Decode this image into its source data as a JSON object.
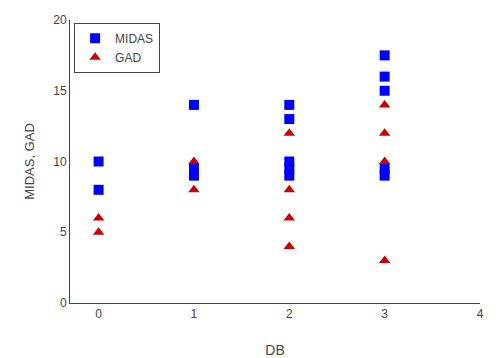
{
  "chart_data": {
    "type": "scatter",
    "xlabel": "DB",
    "ylabel": "MIDAS, GAD",
    "series": [
      {
        "name": "MIDAS",
        "color": "#0000FF",
        "marker": "square",
        "x": [
          0,
          0,
          1,
          1,
          1,
          2,
          2,
          2,
          2,
          2,
          3,
          3,
          3,
          3,
          3
        ],
        "values": [
          8,
          10,
          9,
          9.5,
          14,
          9,
          9.5,
          10,
          13,
          14,
          9,
          9.5,
          15,
          16,
          17.5
        ]
      },
      {
        "name": "GAD",
        "color": "#CC0000",
        "marker": "triangle-up",
        "x": [
          0,
          0,
          1,
          1,
          2,
          2,
          2,
          2,
          3,
          3,
          3,
          3
        ],
        "values": [
          5,
          6,
          8,
          10,
          4,
          6,
          8,
          12,
          3,
          10,
          12,
          14
        ]
      }
    ],
    "xlim": [
      -0.3,
      4.0
    ],
    "ylim": [
      0,
      20
    ],
    "xticks": [
      0,
      1,
      2,
      3,
      4
    ],
    "yticks": [
      0,
      5,
      10,
      15,
      20
    ],
    "grid": false,
    "legend": "upper left"
  }
}
